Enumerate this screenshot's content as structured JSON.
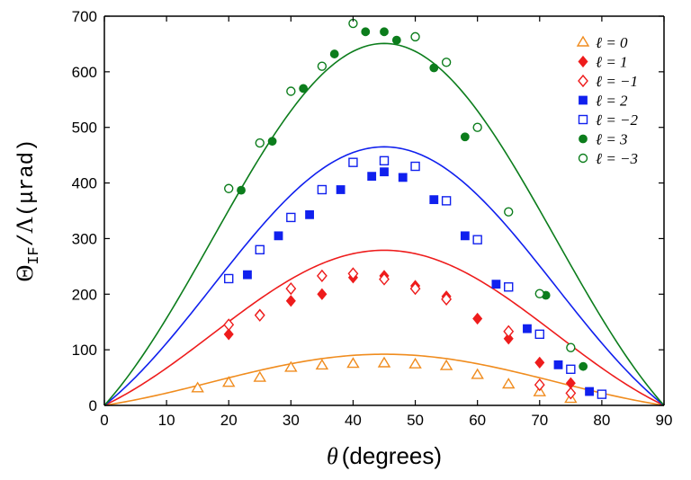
{
  "chart_data": {
    "type": "scatter",
    "xlabel": "θ (degrees)",
    "ylabel": "Θ_IF/Λ(μrad)",
    "xlim": [
      0,
      90
    ],
    "ylim": [
      0,
      700
    ],
    "xticks": [
      0,
      10,
      20,
      30,
      40,
      50,
      60,
      70,
      80,
      90
    ],
    "yticks": [
      0,
      100,
      200,
      300,
      400,
      500,
      600,
      700
    ],
    "grid": false,
    "legend_position": "top-right",
    "series": [
      {
        "name": "ℓ = 0",
        "color": "#f08c1e",
        "marker": "open-triangle",
        "x": [
          15,
          20,
          25,
          30,
          35,
          40,
          45,
          50,
          55,
          60,
          65,
          70,
          75
        ],
        "y": [
          31,
          41,
          50,
          68,
          72,
          75,
          76,
          74,
          71,
          55,
          38,
          24,
          12
        ]
      },
      {
        "name": "ℓ = 1",
        "color": "#ee1c1c",
        "marker": "filled-diamond",
        "x": [
          20,
          25,
          30,
          35,
          40,
          45,
          50,
          55,
          60,
          65,
          70,
          75
        ],
        "y": [
          128,
          163,
          188,
          200,
          230,
          233,
          215,
          196,
          156,
          120,
          77,
          40
        ]
      },
      {
        "name": "ℓ = −1",
        "color": "#ee1c1c",
        "marker": "open-diamond",
        "x": [
          20,
          25,
          30,
          35,
          40,
          45,
          50,
          55,
          65,
          70,
          75
        ],
        "y": [
          145,
          162,
          210,
          233,
          237,
          227,
          210,
          191,
          133,
          37,
          22
        ]
      },
      {
        "name": "ℓ = 2",
        "color": "#1020ee",
        "marker": "filled-square",
        "x": [
          23,
          28,
          33,
          38,
          43,
          45,
          48,
          53,
          58,
          63,
          68,
          73,
          78
        ],
        "y": [
          235,
          305,
          343,
          388,
          412,
          420,
          410,
          370,
          305,
          218,
          138,
          73,
          25
        ]
      },
      {
        "name": "ℓ = −2",
        "color": "#1020ee",
        "marker": "open-square",
        "x": [
          20,
          25,
          30,
          35,
          40,
          45,
          50,
          55,
          60,
          65,
          70,
          75,
          80
        ],
        "y": [
          228,
          280,
          338,
          388,
          437,
          440,
          430,
          368,
          298,
          213,
          128,
          65,
          20
        ]
      },
      {
        "name": "ℓ = 3",
        "color": "#0c7d1c",
        "marker": "filled-circle",
        "x": [
          22,
          27,
          32,
          37,
          42,
          45,
          47,
          53,
          58,
          71,
          77
        ],
        "y": [
          387,
          475,
          570,
          632,
          672,
          672,
          657,
          607,
          483,
          198,
          70
        ]
      },
      {
        "name": "ℓ = −3",
        "color": "#0c7d1c",
        "marker": "open-circle",
        "x": [
          20,
          25,
          30,
          35,
          40,
          50,
          55,
          60,
          65,
          70,
          75
        ],
        "y": [
          390,
          472,
          565,
          610,
          687,
          663,
          617,
          500,
          348,
          201,
          104
        ]
      }
    ],
    "curves": [
      {
        "color": "#f08c1e",
        "peak": 92
      },
      {
        "color": "#ee1c1c",
        "peak": 279
      },
      {
        "color": "#1020ee",
        "peak": 465
      },
      {
        "color": "#0c7d1c",
        "peak": 651
      }
    ]
  }
}
